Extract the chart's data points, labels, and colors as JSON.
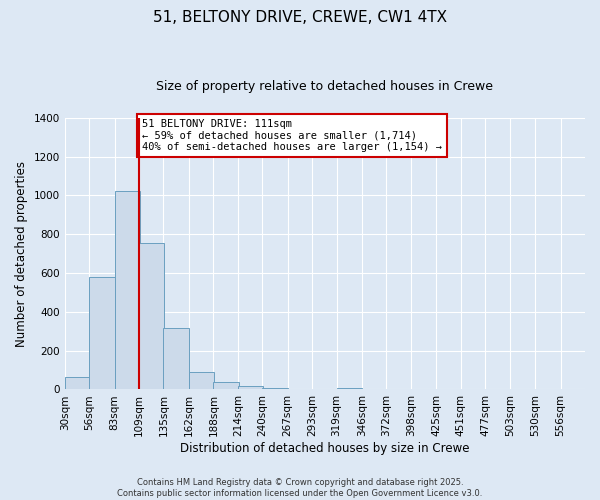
{
  "title": "51, BELTONY DRIVE, CREWE, CW1 4TX",
  "subtitle": "Size of property relative to detached houses in Crewe",
  "xlabel": "Distribution of detached houses by size in Crewe",
  "ylabel": "Number of detached properties",
  "bar_left_edges": [
    30,
    56,
    83,
    109,
    135,
    162,
    188,
    214,
    240,
    267,
    293,
    319,
    346,
    372,
    398,
    425,
    451,
    477,
    503,
    530
  ],
  "bar_heights": [
    65,
    578,
    1022,
    757,
    315,
    90,
    38,
    20,
    10,
    0,
    0,
    10,
    0,
    0,
    0,
    0,
    0,
    0,
    0,
    0
  ],
  "bin_width": 27,
  "bar_facecolor": "#ccdaea",
  "bar_edgecolor": "#6a9fc0",
  "vline_x": 109,
  "vline_color": "#cc0000",
  "annotation_text": "51 BELTONY DRIVE: 111sqm\n← 59% of detached houses are smaller (1,714)\n40% of semi-detached houses are larger (1,154) →",
  "annotation_box_edgecolor": "#cc0000",
  "annotation_box_facecolor": "#ffffff",
  "ylim": [
    0,
    1400
  ],
  "yticks": [
    0,
    200,
    400,
    600,
    800,
    1000,
    1200,
    1400
  ],
  "xtick_labels": [
    "30sqm",
    "56sqm",
    "83sqm",
    "109sqm",
    "135sqm",
    "162sqm",
    "188sqm",
    "214sqm",
    "240sqm",
    "267sqm",
    "293sqm",
    "319sqm",
    "346sqm",
    "372sqm",
    "398sqm",
    "425sqm",
    "451sqm",
    "477sqm",
    "503sqm",
    "530sqm",
    "556sqm"
  ],
  "background_color": "#dde8f4",
  "grid_color": "#ffffff",
  "footer_text": "Contains HM Land Registry data © Crown copyright and database right 2025.\nContains public sector information licensed under the Open Government Licence v3.0.",
  "title_fontsize": 11,
  "subtitle_fontsize": 9,
  "axis_label_fontsize": 8.5,
  "tick_fontsize": 7.5,
  "footer_fontsize": 6
}
